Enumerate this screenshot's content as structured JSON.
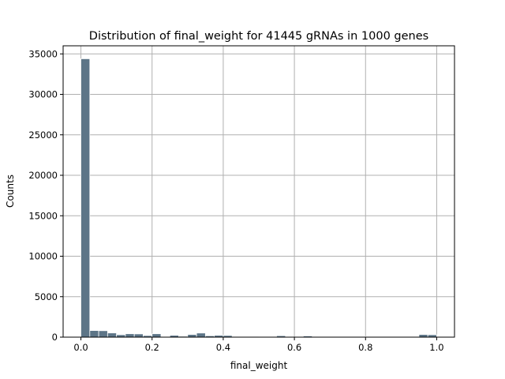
{
  "chart_data": {
    "type": "bar",
    "title": "Distribution of final_weight for 41445 gRNAs in 1000 genes",
    "xlabel": "final_weight",
    "ylabel": "Counts",
    "bin_width": 0.025,
    "bin_starts": [
      0.0,
      0.025,
      0.05,
      0.075,
      0.1,
      0.125,
      0.15,
      0.175,
      0.2,
      0.225,
      0.25,
      0.275,
      0.3,
      0.325,
      0.35,
      0.375,
      0.4,
      0.425,
      0.45,
      0.475,
      0.5,
      0.525,
      0.55,
      0.575,
      0.6,
      0.625,
      0.65,
      0.675,
      0.7,
      0.725,
      0.75,
      0.775,
      0.8,
      0.825,
      0.85,
      0.875,
      0.9,
      0.925,
      0.95,
      0.975
    ],
    "values": [
      34400,
      820,
      800,
      520,
      300,
      420,
      400,
      200,
      420,
      0,
      230,
      110,
      330,
      510,
      170,
      230,
      210,
      0,
      0,
      90,
      0,
      0,
      180,
      0,
      0,
      150,
      0,
      0,
      80,
      0,
      0,
      0,
      80,
      0,
      60,
      0,
      80,
      0,
      330,
      300
    ],
    "xlim": [
      -0.05,
      1.05
    ],
    "ylim": [
      0,
      36000
    ],
    "xticks": [
      0.0,
      0.2,
      0.4,
      0.6,
      0.8,
      1.0
    ],
    "xtick_labels": [
      "0.0",
      "0.2",
      "0.4",
      "0.6",
      "0.8",
      "1.0"
    ],
    "yticks": [
      0,
      5000,
      10000,
      15000,
      20000,
      25000,
      30000,
      35000
    ],
    "ytick_labels": [
      "0",
      "5000",
      "10000",
      "15000",
      "20000",
      "25000",
      "30000",
      "35000"
    ],
    "grid": true,
    "bar_color": "#5d7587",
    "bar_edge_color": "#ffffff",
    "grid_color": "#b0b0b0"
  }
}
